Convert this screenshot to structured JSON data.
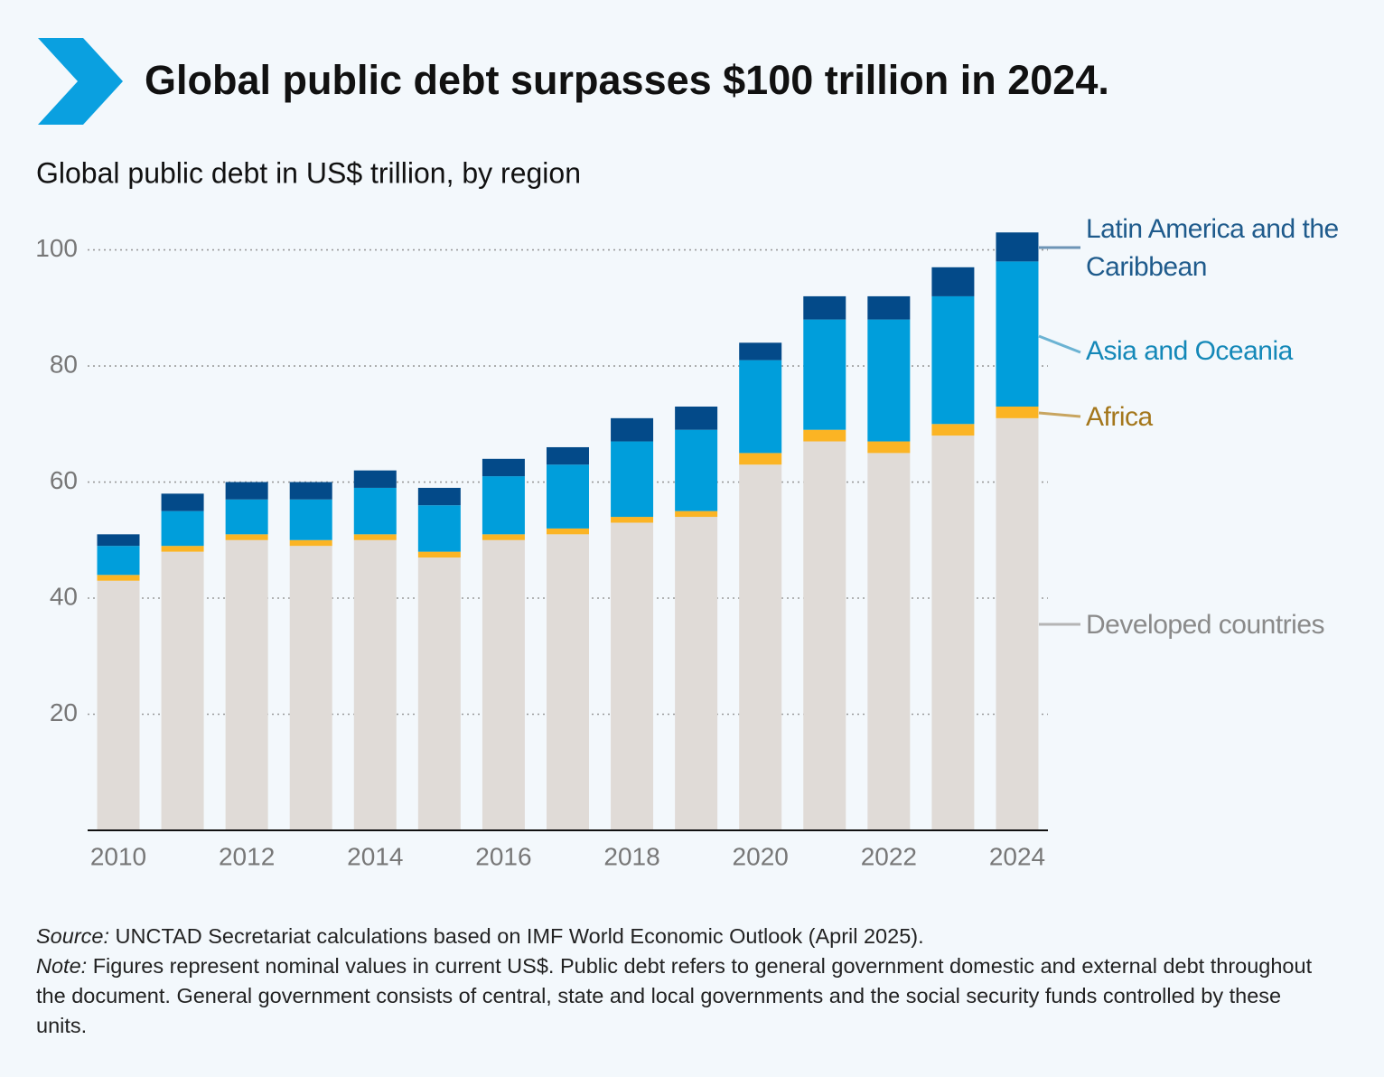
{
  "chart_data": {
    "type": "stacked_bar",
    "title": "Global public debt surpasses $100 trillion in 2024.",
    "subtitle": "Global public debt in US$ trillion, by region",
    "categories": [
      "2010",
      null,
      "2012",
      null,
      "2014",
      null,
      "2016",
      null,
      "2018",
      null,
      "2020",
      null,
      "2022",
      null,
      "2024"
    ],
    "series": [
      {
        "name": "Developed countries",
        "color": "#e0dbd7",
        "values": [
          43,
          48,
          50,
          49,
          50,
          47,
          50,
          51,
          53,
          54,
          63,
          67,
          65,
          68,
          71
        ]
      },
      {
        "name": "Africa",
        "color": "#fbb424",
        "values": [
          1,
          1,
          1,
          1,
          1,
          1,
          1,
          1,
          1,
          1,
          2,
          2,
          2,
          2,
          2
        ]
      },
      {
        "name": "Asia and Oceania",
        "color": "#009edb",
        "values": [
          5,
          6,
          6,
          7,
          8,
          8,
          10,
          11,
          13,
          14,
          16,
          19,
          21,
          22,
          25
        ]
      },
      {
        "name": "Latin America and the Caribbean",
        "color": "#034a89",
        "values": [
          2,
          3,
          3,
          3,
          3,
          3,
          3,
          3,
          4,
          4,
          3,
          4,
          4,
          5,
          5
        ]
      }
    ],
    "ylim": [
      0,
      105
    ],
    "yticks": [
      20,
      40,
      60,
      80,
      100
    ],
    "grid": true,
    "source_label": "Source:",
    "source": "UNCTAD Secretariat calculations based on IMF World Economic Outlook (April 2025).",
    "note_label": "Note:",
    "note": "Figures represent nominal values in current US$. Public debt refers to general government domestic and external debt throughout the document. General government consists of central, state and local governments and the social security funds controlled by these units."
  }
}
